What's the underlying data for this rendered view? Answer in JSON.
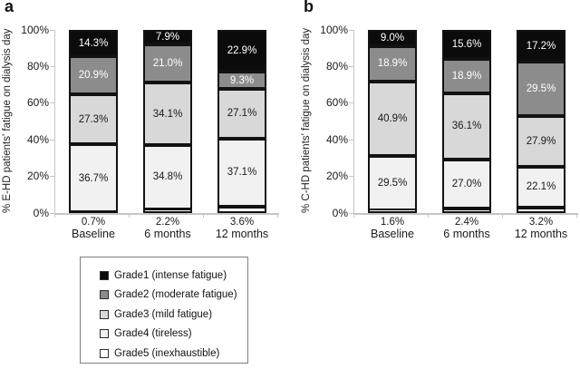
{
  "figure": {
    "background": "#ffffff"
  },
  "colors": {
    "grade1": "#0b0b0b",
    "grade2": "#8c8c8c",
    "grade3": "#d8d8d8",
    "grade4": "#f1f1f1",
    "grade5": "#ffffff",
    "bar_border": "#121212",
    "axis_line": "#c6c6c6",
    "legend_border": "#7f7f7f",
    "text": "#1a1a1a"
  },
  "legend": {
    "items": [
      {
        "label": "Grade1 (intense fatigue)",
        "color_key": "grade1"
      },
      {
        "label": "Grade2 (moderate fatigue)",
        "color_key": "grade2"
      },
      {
        "label": "Grade3 (mild fatigue)",
        "color_key": "grade3"
      },
      {
        "label": "Grade4 (tireless)",
        "color_key": "grade4"
      },
      {
        "label": "Grade5 (inexhaustible)",
        "color_key": "grade5"
      }
    ]
  },
  "chart_data": [
    {
      "type": "bar",
      "stacked": true,
      "percent_stacked": true,
      "panel_label": "a",
      "ylabel": "% E-HD patients' fatigue on dialysis day",
      "xlabel": "",
      "categories": [
        "Baseline",
        "6 months",
        "12 months"
      ],
      "ylim": [
        0,
        100
      ],
      "yticks": [
        "0%",
        "20%",
        "40%",
        "60%",
        "80%",
        "100%"
      ],
      "grid": false,
      "legend_position": "below-left",
      "series": [
        {
          "name": "Grade5 (inexhaustible)",
          "color_key": "grade5",
          "label_color": "#1a1a1a",
          "labels_below_axis": true,
          "values": [
            0.7,
            2.2,
            3.6
          ],
          "labels": [
            "0.7%",
            "2.2%",
            "3.6%"
          ]
        },
        {
          "name": "Grade4 (tireless)",
          "color_key": "grade4",
          "label_color": "#1a1a1a",
          "values": [
            36.7,
            34.8,
            37.1
          ],
          "labels": [
            "36.7%",
            "34.8%",
            "37.1%"
          ]
        },
        {
          "name": "Grade3 (mild fatigue)",
          "color_key": "grade3",
          "label_color": "#1a1a1a",
          "values": [
            27.3,
            34.1,
            27.1
          ],
          "labels": [
            "27.3%",
            "34.1%",
            "27.1%"
          ]
        },
        {
          "name": "Grade2 (moderate fatigue)",
          "color_key": "grade2",
          "label_color": "#ffffff",
          "values": [
            20.9,
            21.0,
            9.3
          ],
          "labels": [
            "20.9%",
            "21.0%",
            "9.3%"
          ]
        },
        {
          "name": "Grade1 (intense fatigue)",
          "color_key": "grade1",
          "label_color": "#ffffff",
          "values": [
            14.3,
            7.9,
            22.9
          ],
          "labels": [
            "14.3%",
            "7.9%",
            "22.9%"
          ]
        }
      ]
    },
    {
      "type": "bar",
      "stacked": true,
      "percent_stacked": true,
      "panel_label": "b",
      "ylabel": "% C-HD patients' fatigue on dialysis day",
      "xlabel": "",
      "categories": [
        "Baseline",
        "6 months",
        "12 months"
      ],
      "ylim": [
        0,
        100
      ],
      "yticks": [
        "0%",
        "20%",
        "40%",
        "60%",
        "80%",
        "100%"
      ],
      "grid": false,
      "series": [
        {
          "name": "Grade5 (inexhaustible)",
          "color_key": "grade5",
          "label_color": "#1a1a1a",
          "labels_below_axis": true,
          "values": [
            1.6,
            2.4,
            3.2
          ],
          "labels": [
            "1.6%",
            "2.4%",
            "3.2%"
          ]
        },
        {
          "name": "Grade4 (tireless)",
          "color_key": "grade4",
          "label_color": "#1a1a1a",
          "values": [
            29.5,
            27.0,
            22.1
          ],
          "labels": [
            "29.5%",
            "27.0%",
            "22.1%"
          ]
        },
        {
          "name": "Grade3 (mild fatigue)",
          "color_key": "grade3",
          "label_color": "#1a1a1a",
          "values": [
            40.9,
            36.1,
            27.9
          ],
          "labels": [
            "40.9%",
            "36.1%",
            "27.9%"
          ]
        },
        {
          "name": "Grade2 (moderate fatigue)",
          "color_key": "grade2",
          "label_color": "#ffffff",
          "values": [
            18.9,
            18.9,
            29.5
          ],
          "labels": [
            "18.9%",
            "18.9%",
            "29.5%"
          ]
        },
        {
          "name": "Grade1 (intense fatigue)",
          "color_key": "grade1",
          "label_color": "#ffffff",
          "values": [
            9.0,
            15.6,
            17.2
          ],
          "labels": [
            "9.0%",
            "15.6%",
            "17.2%"
          ]
        }
      ]
    }
  ]
}
